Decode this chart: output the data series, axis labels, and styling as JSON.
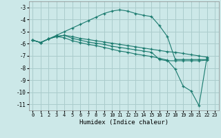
{
  "xlabel": "Humidex (Indice chaleur)",
  "bg_color": "#cce8e8",
  "line_color": "#1a7a6e",
  "grid_color": "#aacccc",
  "xlim_min": -0.5,
  "xlim_max": 23.5,
  "ylim_min": -11.5,
  "ylim_max": -2.5,
  "yticks": [
    -3,
    -4,
    -5,
    -6,
    -7,
    -8,
    -9,
    -10,
    -11
  ],
  "xticks": [
    0,
    1,
    2,
    3,
    4,
    5,
    6,
    7,
    8,
    9,
    10,
    11,
    12,
    13,
    14,
    15,
    16,
    17,
    18,
    19,
    20,
    21,
    22,
    23
  ],
  "x": [
    0,
    1,
    2,
    3,
    4,
    5,
    6,
    7,
    8,
    9,
    10,
    11,
    12,
    13,
    14,
    15,
    16,
    17,
    18,
    19,
    20,
    21,
    22
  ],
  "line1": [
    -5.7,
    -5.9,
    -5.6,
    -5.3,
    -5.0,
    -4.7,
    -4.4,
    -4.1,
    -3.8,
    -3.5,
    -3.3,
    -3.2,
    -3.3,
    -3.5,
    -3.65,
    -3.75,
    -4.5,
    -5.4,
    -7.3,
    -7.3,
    -7.3,
    -7.3,
    -7.3
  ],
  "line2": [
    -5.7,
    -5.9,
    -5.6,
    -5.4,
    -5.3,
    -5.4,
    -5.55,
    -5.65,
    -5.75,
    -5.85,
    -5.95,
    -6.05,
    -6.15,
    -6.25,
    -6.35,
    -6.45,
    -6.55,
    -6.65,
    -6.7,
    -6.8,
    -6.9,
    -7.0,
    -7.1
  ],
  "line3": [
    -5.7,
    -5.9,
    -5.6,
    -5.4,
    -5.5,
    -5.75,
    -5.9,
    -6.05,
    -6.15,
    -6.3,
    -6.45,
    -6.6,
    -6.7,
    -6.85,
    -6.95,
    -7.05,
    -7.2,
    -7.35,
    -8.1,
    -9.5,
    -9.9,
    -11.1,
    -7.15
  ],
  "line4": [
    -5.7,
    -5.9,
    -5.6,
    -5.4,
    -5.3,
    -5.55,
    -5.7,
    -5.85,
    -5.95,
    -6.05,
    -6.2,
    -6.3,
    -6.4,
    -6.5,
    -6.6,
    -6.7,
    -7.3,
    -7.4,
    -7.4,
    -7.4,
    -7.4,
    -7.4,
    -7.35
  ]
}
